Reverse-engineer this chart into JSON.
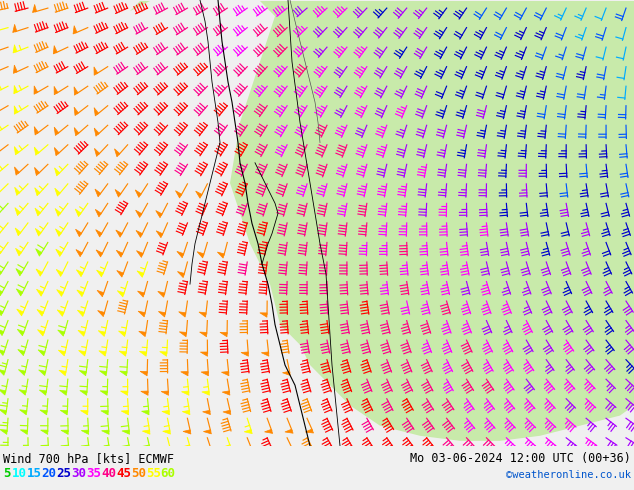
{
  "title_left": "Wind 700 hPa [kts] ECMWF",
  "title_right": "Mo 03-06-2024 12:00 UTC (00+36)",
  "credit": "©weatheronline.co.uk",
  "legend_values": [
    5,
    10,
    15,
    20,
    25,
    30,
    35,
    40,
    45,
    50,
    55,
    60
  ],
  "legend_colors": [
    "#00cc00",
    "#00ffff",
    "#00aaff",
    "#0055ff",
    "#0000cc",
    "#aa00ff",
    "#ff00ff",
    "#ff0088",
    "#ff0000",
    "#ff8800",
    "#ffff00",
    "#aaff00"
  ],
  "speed_color_map": {
    "5": "#00cc00",
    "10": "#00ffff",
    "15": "#00aaff",
    "20": "#0055ff",
    "25": "#0000cc",
    "30": "#aa00ff",
    "35": "#ff00ff",
    "40": "#ff0088",
    "45": "#ff0000",
    "50": "#ff8800",
    "55": "#ffff00",
    "60": "#aaff00"
  },
  "bg_color": "#f0f0f0",
  "land_color": "#c8eaaa",
  "sea_color": "#e8e8e8",
  "figsize": [
    6.34,
    4.9
  ],
  "dpi": 100,
  "bottom_text_color": "#000000",
  "credit_color": "#0055cc",
  "font_size_title": 8.5,
  "font_size_legend": 9,
  "font_size_credit": 7.5
}
